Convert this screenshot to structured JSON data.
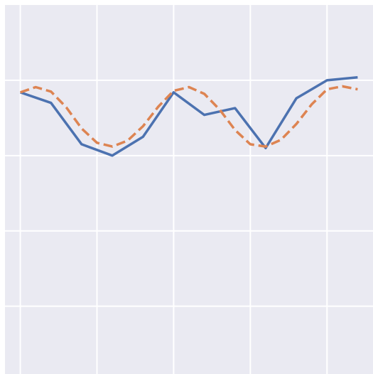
{
  "chart_data": {
    "type": "line",
    "title": "",
    "xlabel": "",
    "ylabel": "",
    "xlim": [
      -0.5,
      11.5
    ],
    "ylim": [
      -2.9,
      2.0
    ],
    "x_gridlines": [
      0,
      2.5,
      5,
      7.5,
      10
    ],
    "y_gridlines": [
      -2.0,
      -1.0,
      0.0,
      1.0
    ],
    "grid": true,
    "background": "#eaeaf2",
    "series": [
      {
        "style": "solid",
        "color": "#4c72b0",
        "x": [
          0,
          1,
          2,
          3,
          4,
          5,
          6,
          7,
          8,
          9,
          10,
          11
        ],
        "y": [
          0.84,
          0.7,
          0.15,
          0.0,
          0.25,
          0.84,
          0.54,
          0.63,
          0.1,
          0.76,
          1.0,
          1.04
        ]
      },
      {
        "style": "dashed",
        "color": "#dd8452",
        "x": [
          0,
          0.5,
          1,
          1.5,
          2,
          2.5,
          3,
          3.5,
          4,
          4.5,
          5,
          5.5,
          6,
          6.5,
          7,
          7.5,
          8,
          8.5,
          9,
          9.5,
          10,
          10.5,
          11
        ],
        "y": [
          0.84,
          0.91,
          0.85,
          0.64,
          0.36,
          0.17,
          0.12,
          0.2,
          0.39,
          0.65,
          0.86,
          0.91,
          0.82,
          0.61,
          0.34,
          0.15,
          0.12,
          0.21,
          0.42,
          0.68,
          0.88,
          0.92,
          0.88
        ]
      }
    ]
  }
}
